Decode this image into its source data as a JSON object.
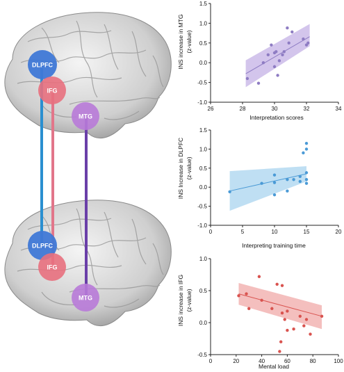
{
  "colors": {
    "dlpfc": "#3f78d6",
    "ifg": "#e8707e",
    "mtg": "#b87ad8",
    "link_blue": "#2a8fd0",
    "link_pink": "#e2768a",
    "link_purple": "#6a3fa8",
    "brain": "#d6d6d6"
  },
  "brain_nodes": {
    "dlpfc": "DLPFC",
    "ifg": "IFG",
    "mtg": "MTG"
  },
  "chart_data": [
    {
      "type": "scatter",
      "color": "#8e7cc3",
      "band_color": "#c4b2e6",
      "xlabel": "Interpretation scores",
      "ylabel": "INS increase in MTG",
      "ylabel2": "(z-value)",
      "xlim": [
        26,
        34
      ],
      "ylim": [
        -1.0,
        1.5
      ],
      "xticks": [
        "26",
        "28",
        "30",
        "32",
        "34"
      ],
      "yticks": [
        "-1.0",
        "-0.5",
        "0.0",
        "0.5",
        "1.0",
        "1.5"
      ],
      "fit": {
        "x": [
          28.2,
          32.2
        ],
        "y": [
          -0.28,
          0.66
        ],
        "band_lo": [
          -0.62,
          0.42
        ],
        "band_hi": [
          0.06,
          0.98
        ]
      },
      "x": [
        28.3,
        29.0,
        29.3,
        29.6,
        29.8,
        30.0,
        30.0,
        30.1,
        30.2,
        30.3,
        30.5,
        30.6,
        30.8,
        30.9,
        31.1,
        31.8,
        32.0,
        32.1
      ],
      "y": [
        -0.4,
        -0.52,
        0.0,
        0.2,
        0.45,
        -0.1,
        0.25,
        0.28,
        -0.32,
        0.05,
        0.2,
        0.28,
        0.88,
        0.5,
        0.78,
        0.6,
        0.45,
        0.5
      ]
    },
    {
      "type": "scatter",
      "color": "#4a9ad6",
      "band_color": "#a9d4ef",
      "xlabel": "Interpreting training time",
      "ylabel": "INS Increase in DLPFC",
      "ylabel2": "(z-value)",
      "xlim": [
        0,
        20
      ],
      "ylim": [
        -1.0,
        1.5
      ],
      "xticks": [
        "0",
        "5",
        "10",
        "15",
        "20"
      ],
      "yticks": [
        "-1.0",
        "-0.5",
        "0.0",
        "0.5",
        "1.0",
        "1.5"
      ],
      "fit": {
        "x": [
          3,
          15
        ],
        "y": [
          -0.1,
          0.35
        ],
        "band_lo": [
          -0.62,
          0.15
        ],
        "band_hi": [
          0.42,
          0.55
        ]
      },
      "x": [
        3,
        8,
        10,
        10,
        10,
        12,
        12,
        13,
        14,
        14,
        14.5,
        15,
        15,
        15,
        15,
        15
      ],
      "y": [
        -0.12,
        0.1,
        -0.2,
        0.12,
        0.32,
        -0.1,
        0.2,
        0.2,
        0.15,
        0.28,
        0.9,
        0.1,
        0.2,
        0.38,
        1.0,
        1.15
      ]
    },
    {
      "type": "scatter",
      "color": "#d9534f",
      "band_color": "#f0aaa8",
      "xlabel": "Mental load",
      "ylabel": "INS increase in IFG",
      "ylabel2": "(z-value)",
      "xlim": [
        0,
        100
      ],
      "ylim": [
        -0.5,
        1.0
      ],
      "xticks": [
        "0",
        "20",
        "40",
        "60",
        "80",
        "100"
      ],
      "yticks": [
        "-0.5",
        "0.0",
        "0.5",
        "1.0"
      ],
      "fit": {
        "x": [
          22,
          87
        ],
        "y": [
          0.45,
          0.1
        ],
        "band_lo": [
          0.28,
          -0.1
        ],
        "band_hi": [
          0.62,
          0.27
        ]
      },
      "x": [
        22,
        28,
        30,
        38,
        40,
        48,
        52,
        54,
        55,
        56,
        56,
        58,
        60,
        60,
        65,
        70,
        73,
        75,
        78,
        87
      ],
      "y": [
        0.42,
        0.45,
        0.22,
        0.72,
        0.35,
        0.22,
        0.6,
        -0.45,
        -0.3,
        0.58,
        0.15,
        0.05,
        0.18,
        -0.12,
        -0.1,
        0.1,
        -0.05,
        0.05,
        -0.18,
        0.1
      ]
    }
  ]
}
